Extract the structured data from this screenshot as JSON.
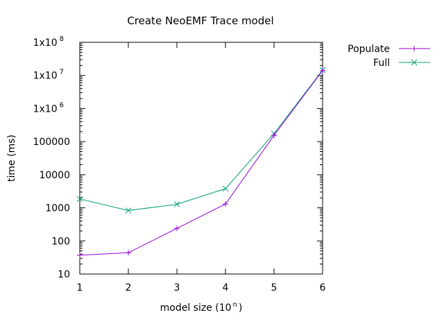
{
  "chart_data": {
    "type": "line",
    "title": "Create NeoEMF Trace model",
    "xlabel_base": "model size (10",
    "xlabel_sup": "n",
    "xlabel_close": ")",
    "ylabel": "time (ms)",
    "x": [
      1,
      2,
      3,
      4,
      5,
      6
    ],
    "xlim": [
      1,
      6
    ],
    "ylim": [
      10,
      100000000
    ],
    "yscale": "log",
    "grid": false,
    "legend_position": "outside-right",
    "x_tick_labels": [
      "1",
      "2",
      "3",
      "4",
      "5",
      "6"
    ],
    "y_ticks": [
      {
        "value": 10,
        "label": "10"
      },
      {
        "value": 100,
        "label": "100"
      },
      {
        "value": 1000,
        "label": "1000"
      },
      {
        "value": 10000,
        "label": "10000"
      },
      {
        "value": 100000,
        "label": "100000"
      },
      {
        "value": 1000000,
        "label": "1x10",
        "sup": "6"
      },
      {
        "value": 10000000,
        "label": "1x10",
        "sup": "7"
      },
      {
        "value": 100000000,
        "label": "1x10",
        "sup": "8"
      }
    ],
    "series": [
      {
        "name": "Populate",
        "values": [
          37,
          44,
          240,
          1300,
          155000,
          14000000
        ],
        "color": "#9400d3",
        "marker": "plus"
      },
      {
        "name": "Full",
        "values": [
          1850,
          830,
          1280,
          3800,
          175000,
          14500000
        ],
        "color": "#009e73",
        "marker": "x"
      }
    ]
  }
}
